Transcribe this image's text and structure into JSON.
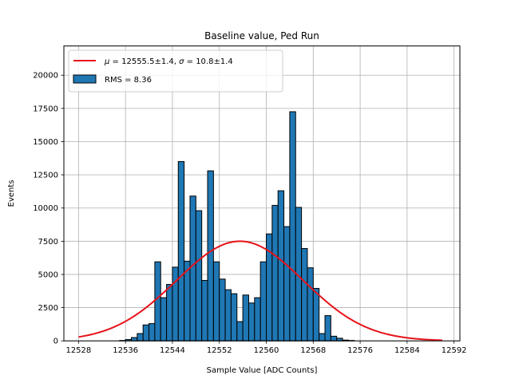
{
  "chart_data": {
    "type": "bar",
    "title": "Baseline value, Ped Run",
    "xlabel": "Sample Value [ADC Counts]",
    "ylabel": "Events",
    "xlim": [
      12525.5,
      12593.0
    ],
    "ylim": [
      0,
      22200
    ],
    "xticks": [
      12528,
      12536,
      12544,
      12552,
      12560,
      12568,
      12576,
      12584,
      12592
    ],
    "yticks": [
      0,
      2500,
      5000,
      7500,
      10000,
      12500,
      15000,
      17500,
      20000
    ],
    "grid": true,
    "legend_placement": "top-left",
    "histogram": {
      "name": "RMS = 8.36",
      "color": "#1f77b4",
      "edge_color": "#000000",
      "bin_start": 12535,
      "bin_width": 1,
      "counts": [
        30,
        100,
        250,
        550,
        1200,
        1300,
        5950,
        3250,
        4250,
        5550,
        13500,
        6000,
        10900,
        9800,
        4550,
        12800,
        5950,
        4650,
        3850,
        3550,
        1450,
        3450,
        2850,
        3250,
        5950,
        8050,
        10200,
        11300,
        8600,
        17250,
        10050,
        6950,
        5500,
        3950,
        550,
        1900,
        350,
        200,
        60,
        30
      ]
    },
    "fit": {
      "name": "$\\mu = 12555.5\\pm1.4$, $\\sigma = 10.8\\pm1.4$",
      "label_mu": "μ",
      "label_mu_value": " = 12555.5±1.4, ",
      "label_sigma": "σ",
      "label_sigma_value": " = 10.8±1.4",
      "color": "#e8121a",
      "type": "gaussian",
      "mu": 12555.5,
      "sigma": 10.8,
      "amplitude": 7500,
      "x_range": [
        12528,
        12590
      ]
    }
  }
}
